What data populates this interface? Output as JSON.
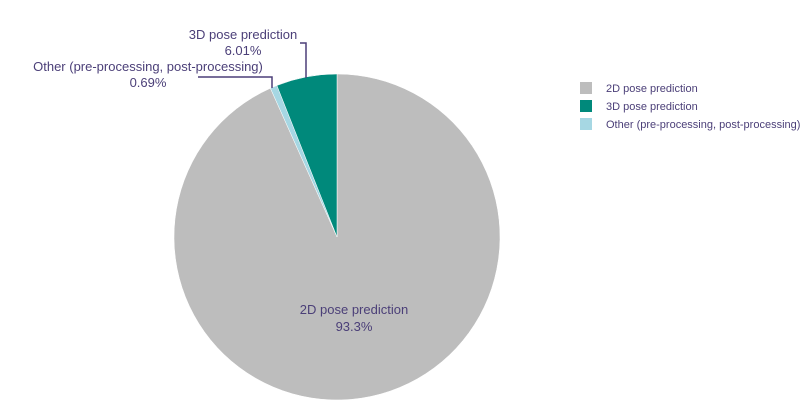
{
  "chart_data": {
    "type": "pie",
    "slices": [
      {
        "label": "2D pose prediction",
        "value": 93.3,
        "display": "93.3%",
        "color": "#bdbdbd"
      },
      {
        "label": "Other (pre-processing, post-processing)",
        "value": 0.69,
        "display": "0.69%",
        "color": "#a6d7e3"
      },
      {
        "label": "3D pose prediction",
        "value": 6.01,
        "display": "6.01%",
        "color": "#00897b"
      }
    ],
    "legend": {
      "placement": "right",
      "entries": [
        "2D pose prediction",
        "3D pose prediction",
        "Other (pre-processing, post-processing)"
      ],
      "colors": [
        "#bdbdbd",
        "#00897b",
        "#a6d7e3"
      ]
    },
    "direction": "clockwise from top",
    "text_color": "#4b3f78"
  }
}
